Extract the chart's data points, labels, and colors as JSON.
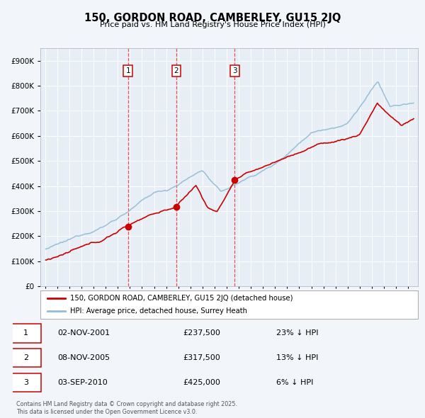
{
  "title": "150, GORDON ROAD, CAMBERLEY, GU15 2JQ",
  "subtitle": "Price paid vs. HM Land Registry's House Price Index (HPI)",
  "legend_line1": "150, GORDON ROAD, CAMBERLEY, GU15 2JQ (detached house)",
  "legend_line2": "HPI: Average price, detached house, Surrey Heath",
  "sale_labels": [
    {
      "n": 1,
      "date_dec": 2001.84,
      "price": 237500,
      "text": "02-NOV-2001",
      "pct": "23%",
      "dir": "↓"
    },
    {
      "n": 2,
      "date_dec": 2005.84,
      "price": 317500,
      "text": "08-NOV-2005",
      "pct": "13%",
      "dir": "↓"
    },
    {
      "n": 3,
      "date_dec": 2010.67,
      "price": 425000,
      "text": "03-SEP-2010",
      "pct": "6%",
      "dir": "↓"
    }
  ],
  "footnote1": "Contains HM Land Registry data © Crown copyright and database right 2025.",
  "footnote2": "This data is licensed under the Open Government Licence v3.0.",
  "red_color": "#cc0000",
  "blue_color": "#92bdd4",
  "fig_bg": "#f2f6fa",
  "plot_bg": "#e8eef5",
  "grid_color": "#ffffff",
  "vline_color": "#ee3333",
  "ylim_max": 950000,
  "yticks": [
    0,
    100000,
    200000,
    300000,
    400000,
    500000,
    600000,
    700000,
    800000,
    900000
  ],
  "xmin": 1994.6,
  "xmax": 2025.8
}
